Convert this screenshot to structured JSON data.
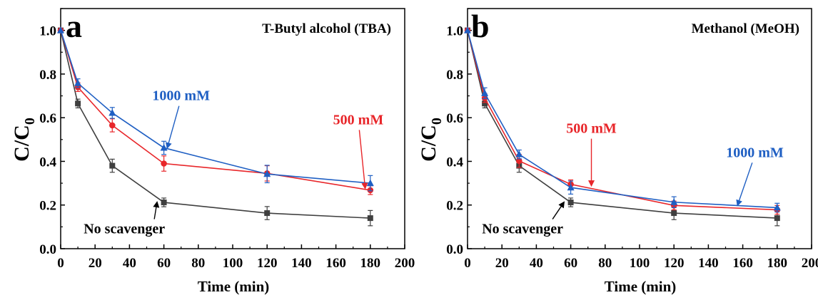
{
  "chart_data": [
    {
      "type": "line",
      "panel_label": "a",
      "title": "T-Butyl alcohol (TBA)",
      "xlabel": "Time (min)",
      "ylabel": {
        "main": "C/C",
        "sub": "0"
      },
      "xlim": [
        0,
        200
      ],
      "ylim": [
        0.0,
        1.1
      ],
      "xticks": [
        "0",
        "20",
        "40",
        "60",
        "80",
        "100",
        "120",
        "140",
        "160",
        "180",
        "200"
      ],
      "yticks": [
        "0.0",
        "0.2",
        "0.4",
        "0.6",
        "0.8",
        "1.0"
      ],
      "x": [
        0,
        10,
        30,
        60,
        120,
        180
      ],
      "series": [
        {
          "name": "No scavenger",
          "color": "#3f3f3f",
          "marker": "square",
          "values": [
            1.0,
            0.665,
            0.38,
            0.212,
            0.163,
            0.14
          ],
          "errors": [
            0.0,
            0.02,
            0.03,
            0.02,
            0.03,
            0.035
          ]
        },
        {
          "name": "500 mM",
          "color": "#e8262a",
          "marker": "circle",
          "values": [
            1.0,
            0.74,
            0.565,
            0.39,
            0.345,
            0.268
          ],
          "errors": [
            0.0,
            0.02,
            0.03,
            0.035,
            0.035,
            0.02
          ]
        },
        {
          "name": "1000 mM",
          "color": "#1f5fc3",
          "marker": "triangle",
          "values": [
            1.0,
            0.758,
            0.622,
            0.462,
            0.342,
            0.3
          ],
          "errors": [
            0.0,
            0.02,
            0.025,
            0.03,
            0.04,
            0.035
          ]
        }
      ],
      "annotations": [
        {
          "text": "1000 mM",
          "series": "1000 mM",
          "text_at": [
            70,
            0.68
          ],
          "arrow_to": [
            62,
            0.463
          ]
        },
        {
          "text": "500 mM",
          "series": "500 mM",
          "text_at": [
            173,
            0.57
          ],
          "arrow_to": [
            177,
            0.278
          ]
        },
        {
          "text": "No scavenger",
          "series": "No scavenger",
          "text_at": [
            37,
            0.07
          ],
          "arrow_to": [
            56,
            0.212
          ]
        }
      ]
    },
    {
      "type": "line",
      "panel_label": "b",
      "title": "Methanol (MeOH)",
      "xlabel": "Time (min)",
      "ylabel": {
        "main": "C/C",
        "sub": "0"
      },
      "xlim": [
        0,
        200
      ],
      "ylim": [
        0.0,
        1.1
      ],
      "xticks": [
        "0",
        "20",
        "40",
        "60",
        "80",
        "100",
        "120",
        "140",
        "160",
        "180",
        "200"
      ],
      "yticks": [
        "0.0",
        "0.2",
        "0.4",
        "0.6",
        "0.8",
        "1.0"
      ],
      "x": [
        0,
        10,
        30,
        60,
        120,
        180
      ],
      "series": [
        {
          "name": "No scavenger",
          "color": "#3f3f3f",
          "marker": "square",
          "values": [
            1.0,
            0.665,
            0.38,
            0.212,
            0.163,
            0.14
          ],
          "errors": [
            0.0,
            0.02,
            0.03,
            0.02,
            0.03,
            0.035
          ]
        },
        {
          "name": "500 mM",
          "color": "#e8262a",
          "marker": "circle",
          "values": [
            1.0,
            0.69,
            0.402,
            0.295,
            0.198,
            0.178
          ],
          "errors": [
            0.0,
            0.02,
            0.03,
            0.02,
            0.02,
            0.02
          ]
        },
        {
          "name": "1000 mM",
          "color": "#1f5fc3",
          "marker": "triangle",
          "values": [
            1.0,
            0.712,
            0.432,
            0.28,
            0.213,
            0.188
          ],
          "errors": [
            0.0,
            0.025,
            0.02,
            0.03,
            0.025,
            0.02
          ]
        }
      ],
      "annotations": [
        {
          "text": "500 mM",
          "series": "500 mM",
          "text_at": [
            72,
            0.53
          ],
          "arrow_to": [
            72,
            0.29
          ]
        },
        {
          "text": "1000 mM",
          "series": "1000 mM",
          "text_at": [
            167,
            0.42
          ],
          "arrow_to": [
            157,
            0.2
          ]
        },
        {
          "text": "No scavenger",
          "series": "No scavenger",
          "text_at": [
            32,
            0.07
          ],
          "arrow_to": [
            56,
            0.212
          ]
        }
      ]
    }
  ]
}
